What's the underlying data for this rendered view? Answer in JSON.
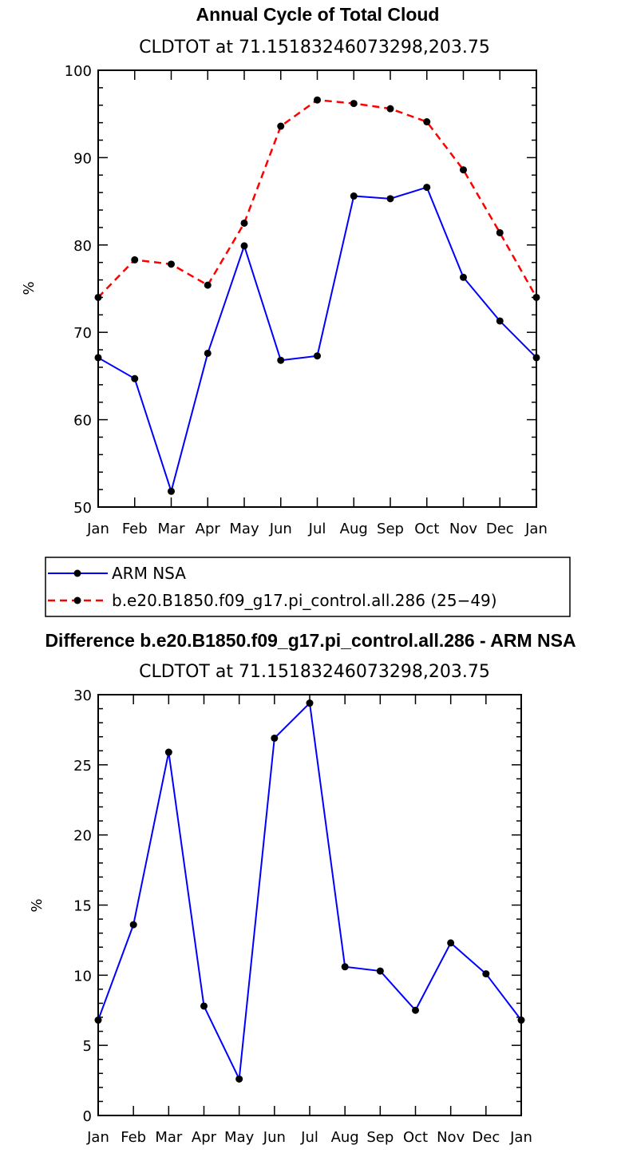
{
  "chart_data": [
    {
      "type": "line",
      "title": "Annual Cycle of Total Cloud",
      "subtitle": "CLDTOT at 71.15183246073298,203.75",
      "xlabel": "",
      "ylabel": "%",
      "categories": [
        "Jan",
        "Feb",
        "Mar",
        "Apr",
        "May",
        "Jun",
        "Jul",
        "Aug",
        "Sep",
        "Oct",
        "Nov",
        "Dec",
        "Jan"
      ],
      "ylim": [
        50,
        100
      ],
      "yticks": [
        50,
        60,
        70,
        80,
        90,
        100
      ],
      "grid": false,
      "legend_position": "bottom",
      "series": [
        {
          "name": "ARM NSA",
          "color": "#0000ff",
          "dash": "solid",
          "values": [
            67.1,
            64.7,
            51.8,
            67.6,
            79.9,
            66.8,
            67.3,
            85.6,
            85.3,
            86.6,
            76.3,
            71.3,
            67.1
          ]
        },
        {
          "name": "b.e20.B1850.f09_g17.pi_control.all.286 (25−49)",
          "color": "#ff0000",
          "dash": "dashed",
          "values": [
            74.0,
            78.3,
            77.8,
            75.4,
            82.5,
            93.6,
            96.6,
            96.2,
            95.6,
            94.1,
            88.6,
            81.4,
            74.0
          ]
        }
      ]
    },
    {
      "type": "line",
      "title": "Difference b.e20.B1850.f09_g17.pi_control.all.286 - ARM NSA",
      "subtitle": "CLDTOT at 71.15183246073298,203.75",
      "xlabel": "",
      "ylabel": "%",
      "categories": [
        "Jan",
        "Feb",
        "Mar",
        "Apr",
        "May",
        "Jun",
        "Jul",
        "Aug",
        "Sep",
        "Oct",
        "Nov",
        "Dec",
        "Jan"
      ],
      "ylim": [
        0,
        30
      ],
      "yticks": [
        0,
        5,
        10,
        15,
        20,
        25,
        30
      ],
      "grid": false,
      "series": [
        {
          "color": "#0000ff",
          "dash": "solid",
          "values": [
            6.8,
            13.6,
            25.9,
            7.8,
            2.6,
            26.9,
            29.4,
            10.6,
            10.3,
            7.5,
            12.3,
            10.1,
            6.8
          ]
        }
      ]
    }
  ]
}
